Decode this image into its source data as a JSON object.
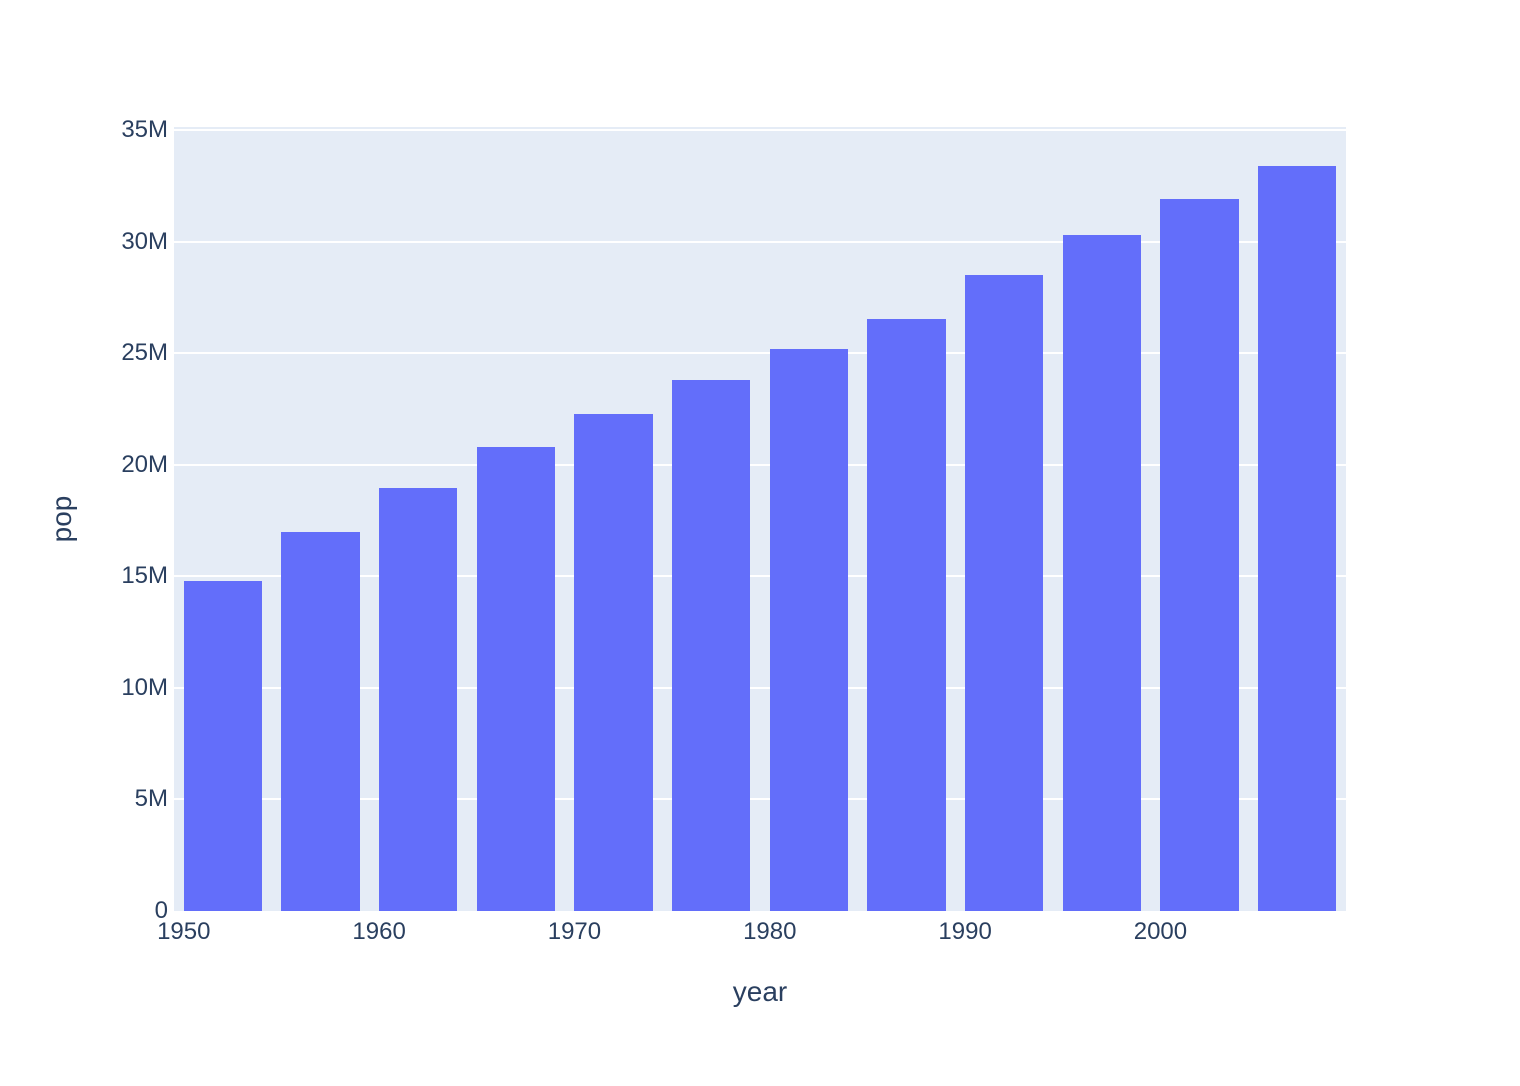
{
  "chart_data": {
    "type": "bar",
    "title": "",
    "xlabel": "year",
    "ylabel": "pop",
    "x": [
      1952,
      1957,
      1962,
      1967,
      1972,
      1977,
      1982,
      1987,
      1992,
      1997,
      2002,
      2007
    ],
    "values": [
      14785584,
      17010154,
      18985849,
      20819767,
      22284500,
      23796400,
      25201900,
      26549700,
      28523502,
      30305843,
      31902268,
      33390141
    ],
    "series_name": "pop",
    "xlim": [
      1949.5,
      2009.5
    ],
    "ylim": [
      0,
      35150000
    ],
    "bar_width_x_units": 4,
    "x_tick_values": [
      1950,
      1960,
      1970,
      1980,
      1990,
      2000
    ],
    "x_tick_labels": [
      "1950",
      "1960",
      "1970",
      "1980",
      "1990",
      "2000"
    ],
    "y_tick_values": [
      0,
      5000000,
      10000000,
      15000000,
      20000000,
      25000000,
      30000000,
      35000000
    ],
    "y_tick_labels": [
      "0",
      "5M",
      "10M",
      "15M",
      "20M",
      "25M",
      "30M",
      "35M"
    ],
    "legend": "none",
    "grid": "horizontal",
    "colors": {
      "bar": "#636efa",
      "plot_background": "#e5ecf6",
      "gridline": "#ffffff",
      "label_text": "#2a3f5f",
      "page_background": "#ffffff"
    }
  }
}
